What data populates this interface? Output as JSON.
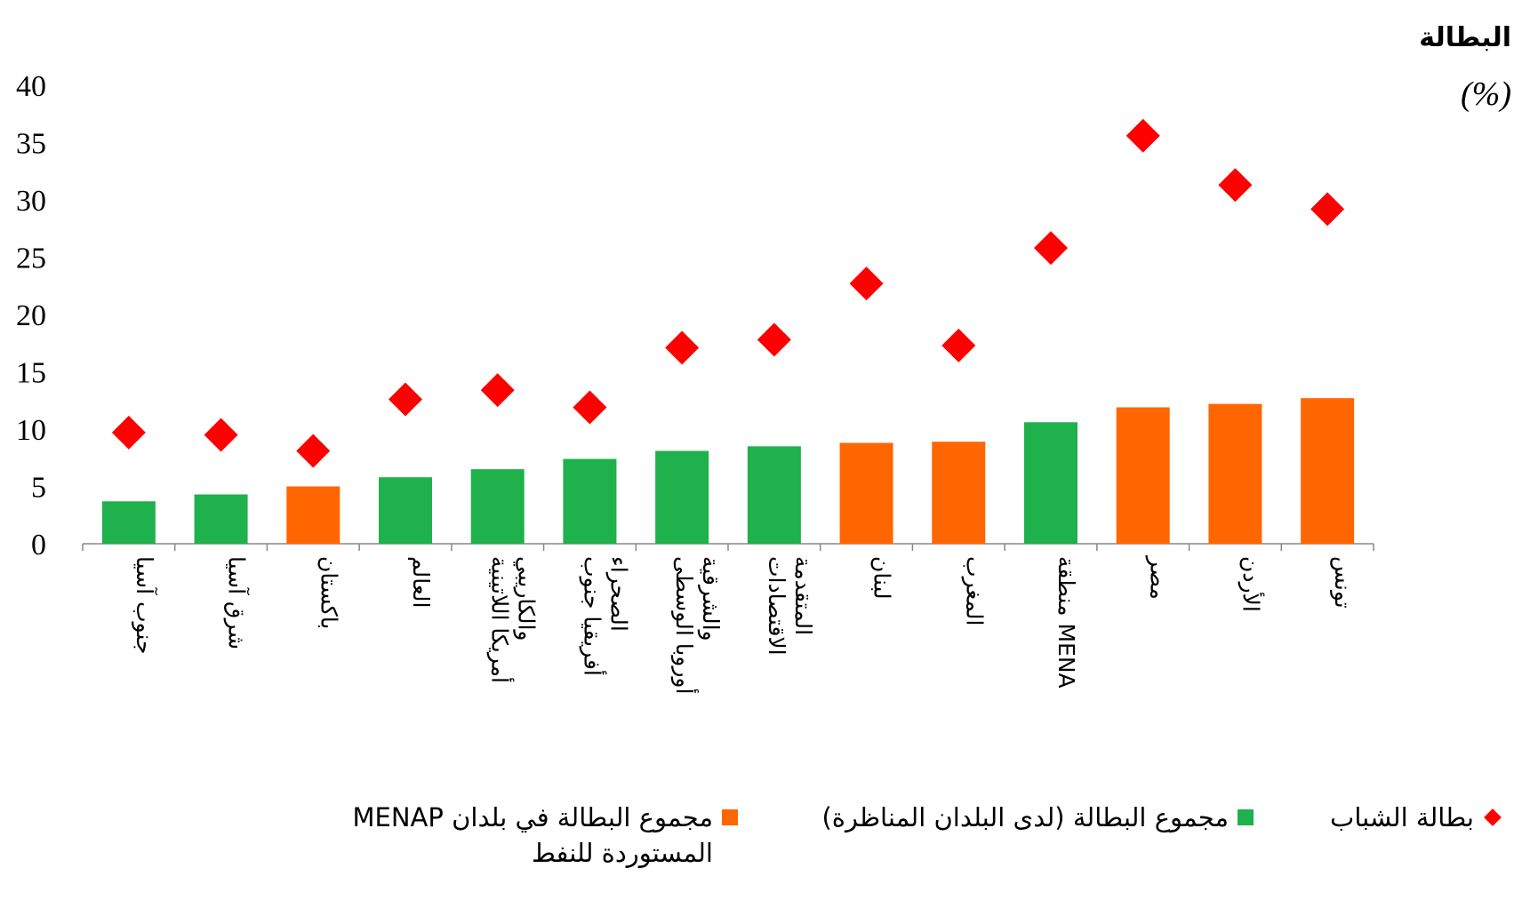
{
  "chart_data": {
    "type": "bar",
    "title": "البطالة",
    "unit": "(%)",
    "ylim": [
      0,
      40
    ],
    "yticks": [
      "0",
      "5",
      "10",
      "15",
      "20",
      "25",
      "30",
      "35",
      "40"
    ],
    "categories": [
      [
        "جنوب آسيا"
      ],
      [
        "شرق آسيا"
      ],
      [
        "باكستان"
      ],
      [
        "العالم"
      ],
      [
        "أمريكا اللاتينية",
        "والكاريبي"
      ],
      [
        "أفريقيا جنوب",
        "الصحراء"
      ],
      [
        "أوروبا الوسطى",
        "والشرقية"
      ],
      [
        "الاقتصادات",
        "المتقدمة"
      ],
      [
        "لبنان"
      ],
      [
        "المغرب"
      ],
      [
        "منطقة MENA"
      ],
      [
        "مصر"
      ],
      [
        "الأردن"
      ],
      [
        "تونس"
      ]
    ],
    "series": [
      {
        "name": "مجموع البطالة في بلدان MENAP المستوردة للنفط",
        "type": "bar",
        "color": "#ff6600",
        "values": [
          null,
          null,
          5.0,
          null,
          null,
          null,
          null,
          null,
          8.8,
          8.9,
          null,
          11.9,
          12.2,
          12.7
        ]
      },
      {
        "name": "مجموع البطالة (لدى البلدان المناظرة)",
        "type": "bar",
        "color": "#1fb14b",
        "values": [
          3.7,
          4.3,
          null,
          5.8,
          6.5,
          7.4,
          8.1,
          8.5,
          null,
          null,
          10.6,
          null,
          null,
          null
        ]
      },
      {
        "name": "بطالة الشباب",
        "type": "scatter",
        "marker": "diamond",
        "color": "#ff0000",
        "values": [
          9.7,
          9.5,
          8.1,
          12.6,
          13.4,
          11.9,
          17.1,
          17.8,
          22.7,
          17.3,
          25.8,
          35.6,
          31.3,
          29.2
        ]
      }
    ],
    "legend": [
      {
        "label": "بطالة الشباب",
        "symbol": "diamond",
        "color": "#ff0000"
      },
      {
        "label": "مجموع البطالة (لدى البلدان المناظرة)",
        "symbol": "square",
        "color": "#1fb14b"
      },
      {
        "label": "مجموع البطالة في بلدان MENAP المستوردة للنفط",
        "symbol": "square",
        "color": "#ff6600"
      }
    ],
    "legend_position": "bottom",
    "grid": false
  }
}
